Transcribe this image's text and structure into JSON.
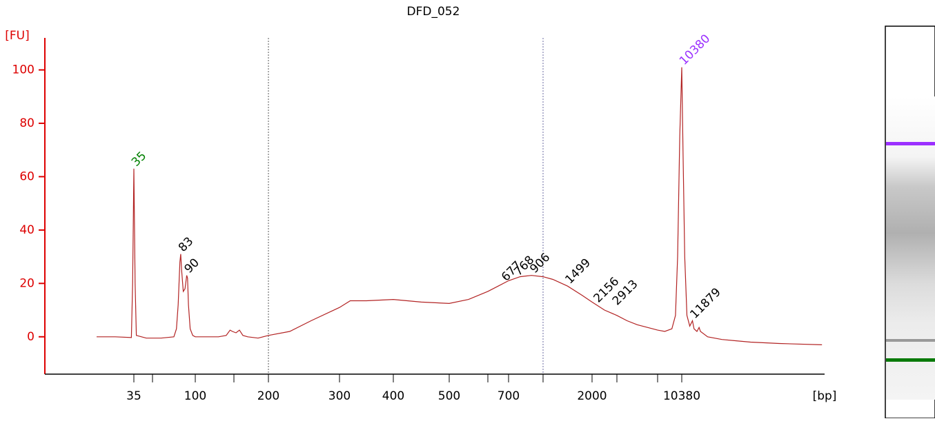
{
  "chart_data": {
    "type": "line",
    "title": "DFD_052",
    "y_label": "[FU]",
    "x_label": "[bp]",
    "x": [
      5,
      20,
      33,
      34,
      35,
      36,
      37,
      45,
      60,
      75,
      78,
      80,
      82,
      83,
      84,
      86,
      88,
      90,
      91,
      92,
      94,
      97,
      100,
      120,
      130,
      140,
      145,
      148,
      153,
      158,
      163,
      170,
      185,
      200,
      230,
      260,
      300,
      320,
      350,
      400,
      450,
      500,
      550,
      600,
      650,
      700,
      800,
      900,
      1000,
      1200,
      1500,
      1800,
      2000,
      2500,
      3000,
      4000,
      5000,
      6000,
      7000,
      8000,
      9000,
      9500,
      9800,
      10100,
      10380,
      10550,
      10800,
      11100,
      11500,
      11879,
      12100,
      12500,
      12800,
      13000,
      14000,
      16000,
      18000,
      20000,
      24000,
      30000
    ],
    "series": [
      {
        "name": "DFD_052",
        "color": "#b22222",
        "values": [
          0,
          0,
          -0.3,
          20,
          63,
          20,
          0.5,
          -0.5,
          -0.5,
          0,
          3,
          12,
          28,
          31,
          25,
          17,
          18,
          23,
          22,
          12,
          3,
          0.5,
          0,
          0,
          0,
          0.5,
          2.5,
          2,
          1.5,
          2.5,
          0.5,
          0,
          -0.5,
          0.5,
          2,
          6,
          11,
          13.5,
          13.5,
          14,
          13,
          12.5,
          14,
          17,
          19,
          21,
          22.5,
          23,
          22.5,
          21.5,
          19,
          15.5,
          13,
          10,
          8,
          6,
          4.5,
          3.5,
          2.5,
          2,
          3,
          8,
          30,
          75,
          101,
          70,
          30,
          8,
          4,
          6,
          3,
          2,
          3.5,
          2,
          0,
          -1,
          -1.5,
          -2,
          -2.5,
          -3
        ]
      }
    ],
    "peaks": [
      {
        "x": 35,
        "y": 63,
        "color": "#008000"
      },
      {
        "x": 83,
        "y": 31,
        "color": "#000000"
      },
      {
        "x": 90,
        "y": 23,
        "color": "#000000"
      },
      {
        "x": 677,
        "y": 20,
        "color": "#000000"
      },
      {
        "x": 768,
        "y": 22,
        "color": "#000000"
      },
      {
        "x": 906,
        "y": 23,
        "color": "#000000"
      },
      {
        "x": 1499,
        "y": 19,
        "color": "#000000"
      },
      {
        "x": 2156,
        "y": 12,
        "color": "#000000"
      },
      {
        "x": 2913,
        "y": 11,
        "color": "#000000"
      },
      {
        "x": 11879,
        "y": 6,
        "color": "#000000"
      },
      {
        "x": 10380,
        "y": 101,
        "color": "#9b30ff"
      }
    ],
    "region_markers": [
      200,
      1000
    ],
    "xticks": [
      35,
      100,
      200,
      300,
      400,
      500,
      700,
      2000,
      10380
    ],
    "xminorticks": [
      50,
      150,
      600,
      1000,
      3000,
      7000
    ],
    "ylim": [
      -14,
      112
    ],
    "yticks": [
      0,
      20,
      40,
      60,
      80,
      100
    ]
  }
}
